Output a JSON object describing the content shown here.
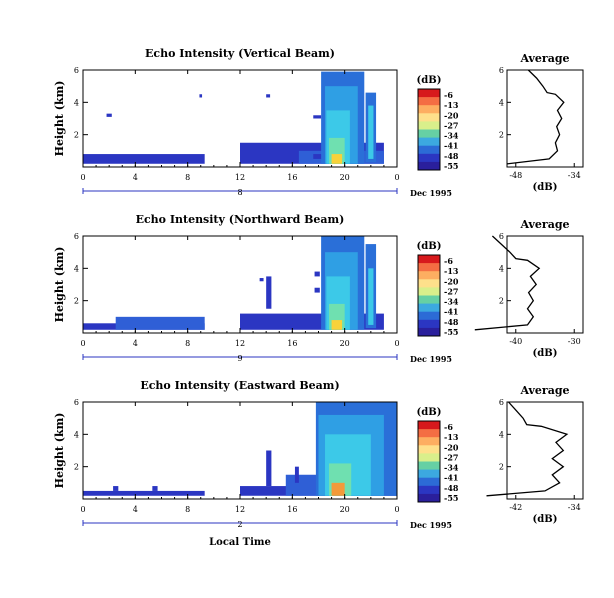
{
  "chart_data": [
    {
      "type": "heatmap",
      "title": "Echo Intensity (Vertical Beam)",
      "ylabel": "Height (km)",
      "ylim": [
        0,
        6
      ],
      "yticks": [
        "6",
        "4",
        "2"
      ],
      "xticks": [
        "0",
        "4",
        "8",
        "12",
        "16",
        "20",
        "0"
      ],
      "date_tick": "8",
      "date_label": "Dec 1995",
      "xlabel": "",
      "colorbar": {
        "label": "(dB)",
        "ticks": [
          "-6",
          "-13",
          "-20",
          "-27",
          "-34",
          "-41",
          "-48",
          "-55"
        ]
      },
      "profile": {
        "title": "Average",
        "xlabel": "(dB)",
        "xticks": [
          "-48",
          "-34"
        ],
        "yticks": [
          "6",
          "4",
          "2"
        ]
      },
      "cells": [
        {
          "t0": 0,
          "t1": 9.3,
          "h0": 0.2,
          "h1": 0.8,
          "c": "#2b36c2"
        },
        {
          "t0": 12,
          "t1": 23,
          "h0": 0.2,
          "h1": 1.5,
          "c": "#2b36c2"
        },
        {
          "t0": 16.5,
          "t1": 23,
          "h0": 0.2,
          "h1": 1.0,
          "c": "#2f5fd6"
        },
        {
          "t0": 18.2,
          "t1": 21.5,
          "h0": 0.2,
          "h1": 5.9,
          "c": "#2a6fd8"
        },
        {
          "t0": 18.5,
          "t1": 21.0,
          "h0": 0.2,
          "h1": 5.0,
          "c": "#2f9fe4"
        },
        {
          "t0": 18.6,
          "t1": 20.4,
          "h0": 0.2,
          "h1": 3.5,
          "c": "#3cc9e8"
        },
        {
          "t0": 18.8,
          "t1": 20.0,
          "h0": 0.2,
          "h1": 1.8,
          "c": "#6fe0b0"
        },
        {
          "t0": 19.0,
          "t1": 19.8,
          "h0": 0.2,
          "h1": 0.8,
          "c": "#f7d23a"
        },
        {
          "t0": 21.6,
          "t1": 22.4,
          "h0": 0.3,
          "h1": 4.6,
          "c": "#2a6fd8"
        },
        {
          "t0": 21.8,
          "t1": 22.2,
          "h0": 0.5,
          "h1": 3.8,
          "c": "#3cc9e8"
        },
        {
          "t0": 1.8,
          "t1": 2.2,
          "h0": 3.1,
          "h1": 3.3,
          "c": "#2b36c2"
        },
        {
          "t0": 14.0,
          "t1": 14.3,
          "h0": 4.3,
          "h1": 4.5,
          "c": "#2b36c2"
        },
        {
          "t0": 8.9,
          "t1": 9.1,
          "h0": 4.3,
          "h1": 4.5,
          "c": "#2b36c2"
        },
        {
          "t0": 17.6,
          "t1": 18.2,
          "h0": 3.0,
          "h1": 3.2,
          "c": "#2b36c2"
        },
        {
          "t0": 17.6,
          "t1": 18.2,
          "h0": 0.5,
          "h1": 0.8,
          "c": "#2b36c2"
        }
      ],
      "profile_points": [
        [
          -50,
          0.2
        ],
        [
          -40,
          0.5
        ],
        [
          -38,
          1.0
        ],
        [
          -38.5,
          1.5
        ],
        [
          -37.5,
          2.0
        ],
        [
          -38.2,
          2.5
        ],
        [
          -37.0,
          3.0
        ],
        [
          -38.0,
          3.5
        ],
        [
          -36.5,
          4.0
        ],
        [
          -38.5,
          4.5
        ],
        [
          -40.5,
          4.6
        ],
        [
          -41.5,
          5.0
        ],
        [
          -43.0,
          5.5
        ],
        [
          -45,
          6.0
        ]
      ]
    },
    {
      "type": "heatmap",
      "title": "Echo Intensity (Northward Beam)",
      "ylabel": "Height (km)",
      "ylim": [
        0,
        6
      ],
      "yticks": [
        "6",
        "4",
        "2"
      ],
      "xticks": [
        "0",
        "4",
        "8",
        "12",
        "16",
        "20",
        "0"
      ],
      "date_tick": "9",
      "date_label": "Dec 1995",
      "xlabel": "",
      "colorbar": {
        "label": "(dB)",
        "ticks": [
          "-6",
          "-13",
          "-20",
          "-27",
          "-34",
          "-41",
          "-48",
          "-55"
        ]
      },
      "profile": {
        "title": "Average",
        "xlabel": "(dB)",
        "xticks": [
          "-40",
          "-30"
        ],
        "yticks": [
          "6",
          "4",
          "2"
        ]
      },
      "cells": [
        {
          "t0": 0,
          "t1": 9.3,
          "h0": 0.2,
          "h1": 0.6,
          "c": "#2b36c2"
        },
        {
          "t0": 2.5,
          "t1": 9.3,
          "h0": 0.2,
          "h1": 1.0,
          "c": "#2f5fd6"
        },
        {
          "t0": 12,
          "t1": 23,
          "h0": 0.2,
          "h1": 1.2,
          "c": "#2b36c2"
        },
        {
          "t0": 18.2,
          "t1": 21.5,
          "h0": 0.2,
          "h1": 6.0,
          "c": "#2a6fd8"
        },
        {
          "t0": 18.5,
          "t1": 21.0,
          "h0": 0.2,
          "h1": 5.0,
          "c": "#2f9fe4"
        },
        {
          "t0": 18.6,
          "t1": 20.4,
          "h0": 0.2,
          "h1": 3.5,
          "c": "#3cc9e8"
        },
        {
          "t0": 18.8,
          "t1": 20.0,
          "h0": 0.2,
          "h1": 1.8,
          "c": "#6fe0b0"
        },
        {
          "t0": 19.0,
          "t1": 19.8,
          "h0": 0.2,
          "h1": 0.8,
          "c": "#f7d23a"
        },
        {
          "t0": 21.6,
          "t1": 22.4,
          "h0": 0.3,
          "h1": 5.5,
          "c": "#2a6fd8"
        },
        {
          "t0": 21.8,
          "t1": 22.2,
          "h0": 0.5,
          "h1": 4.0,
          "c": "#3cc9e8"
        },
        {
          "t0": 14.0,
          "t1": 14.4,
          "h0": 1.5,
          "h1": 3.5,
          "c": "#2b36c2"
        },
        {
          "t0": 13.5,
          "t1": 13.8,
          "h0": 3.2,
          "h1": 3.4,
          "c": "#2b36c2"
        },
        {
          "t0": 17.7,
          "t1": 18.1,
          "h0": 3.5,
          "h1": 3.8,
          "c": "#2b36c2"
        },
        {
          "t0": 17.7,
          "t1": 18.1,
          "h0": 2.5,
          "h1": 2.8,
          "c": "#2b36c2"
        }
      ],
      "profile_points": [
        [
          -47,
          0.2
        ],
        [
          -38,
          0.5
        ],
        [
          -37,
          1.0
        ],
        [
          -38,
          1.5
        ],
        [
          -37,
          2.0
        ],
        [
          -37.8,
          2.5
        ],
        [
          -36.5,
          3.0
        ],
        [
          -37.5,
          3.5
        ],
        [
          -36.0,
          4.0
        ],
        [
          -38.0,
          4.5
        ],
        [
          -40.0,
          4.6
        ],
        [
          -41.0,
          5.0
        ],
        [
          -42.5,
          5.5
        ],
        [
          -44,
          6.0
        ]
      ]
    },
    {
      "type": "heatmap",
      "title": "Echo Intensity (Eastward Beam)",
      "ylabel": "Height (km)",
      "ylim": [
        0,
        6
      ],
      "yticks": [
        "6",
        "4",
        "2"
      ],
      "xticks": [
        "0",
        "4",
        "8",
        "12",
        "16",
        "20",
        "0"
      ],
      "date_tick": "2",
      "date_label": "Dec 1995",
      "xlabel": "Local Time",
      "colorbar": {
        "label": "(dB)",
        "ticks": [
          "-6",
          "-13",
          "-20",
          "-27",
          "-34",
          "-41",
          "-48",
          "-55"
        ]
      },
      "profile": {
        "title": "Average",
        "xlabel": "(dB)",
        "xticks": [
          "-42",
          "-34"
        ],
        "yticks": [
          "6",
          "4",
          "2"
        ]
      },
      "cells": [
        {
          "t0": 0,
          "t1": 9.3,
          "h0": 0.2,
          "h1": 0.5,
          "c": "#2b36c2"
        },
        {
          "t0": 12,
          "t1": 24,
          "h0": 0.2,
          "h1": 0.8,
          "c": "#2b36c2"
        },
        {
          "t0": 15.5,
          "t1": 24,
          "h0": 0.2,
          "h1": 1.5,
          "c": "#2f5fd6"
        },
        {
          "t0": 17.8,
          "t1": 24,
          "h0": 0.2,
          "h1": 6.0,
          "c": "#2a6fd8"
        },
        {
          "t0": 18.0,
          "t1": 23.0,
          "h0": 0.2,
          "h1": 5.2,
          "c": "#2f9fe4"
        },
        {
          "t0": 18.5,
          "t1": 22.0,
          "h0": 0.2,
          "h1": 4.0,
          "c": "#3cc9e8"
        },
        {
          "t0": 18.8,
          "t1": 20.5,
          "h0": 0.2,
          "h1": 2.2,
          "c": "#6fe0b0"
        },
        {
          "t0": 19.0,
          "t1": 20.0,
          "h0": 0.2,
          "h1": 1.0,
          "c": "#f39a3a"
        },
        {
          "t0": 14.0,
          "t1": 14.4,
          "h0": 0.8,
          "h1": 3.0,
          "c": "#2b36c2"
        },
        {
          "t0": 16.2,
          "t1": 16.5,
          "h0": 1.0,
          "h1": 2.0,
          "c": "#2b36c2"
        },
        {
          "t0": 5.3,
          "t1": 5.7,
          "h0": 0.5,
          "h1": 0.8,
          "c": "#2b36c2"
        },
        {
          "t0": 2.3,
          "t1": 2.7,
          "h0": 0.5,
          "h1": 0.8,
          "c": "#2b36c2"
        }
      ],
      "profile_points": [
        [
          -46,
          0.2
        ],
        [
          -38,
          0.5
        ],
        [
          -36,
          1.0
        ],
        [
          -37,
          1.5
        ],
        [
          -35.5,
          2.0
        ],
        [
          -37,
          2.5
        ],
        [
          -35.5,
          3.0
        ],
        [
          -36.5,
          3.5
        ],
        [
          -35.0,
          4.0
        ],
        [
          -38.5,
          4.5
        ],
        [
          -40.5,
          4.6
        ],
        [
          -41.0,
          5.0
        ],
        [
          -42.0,
          5.5
        ],
        [
          -43,
          6.0
        ]
      ]
    }
  ]
}
